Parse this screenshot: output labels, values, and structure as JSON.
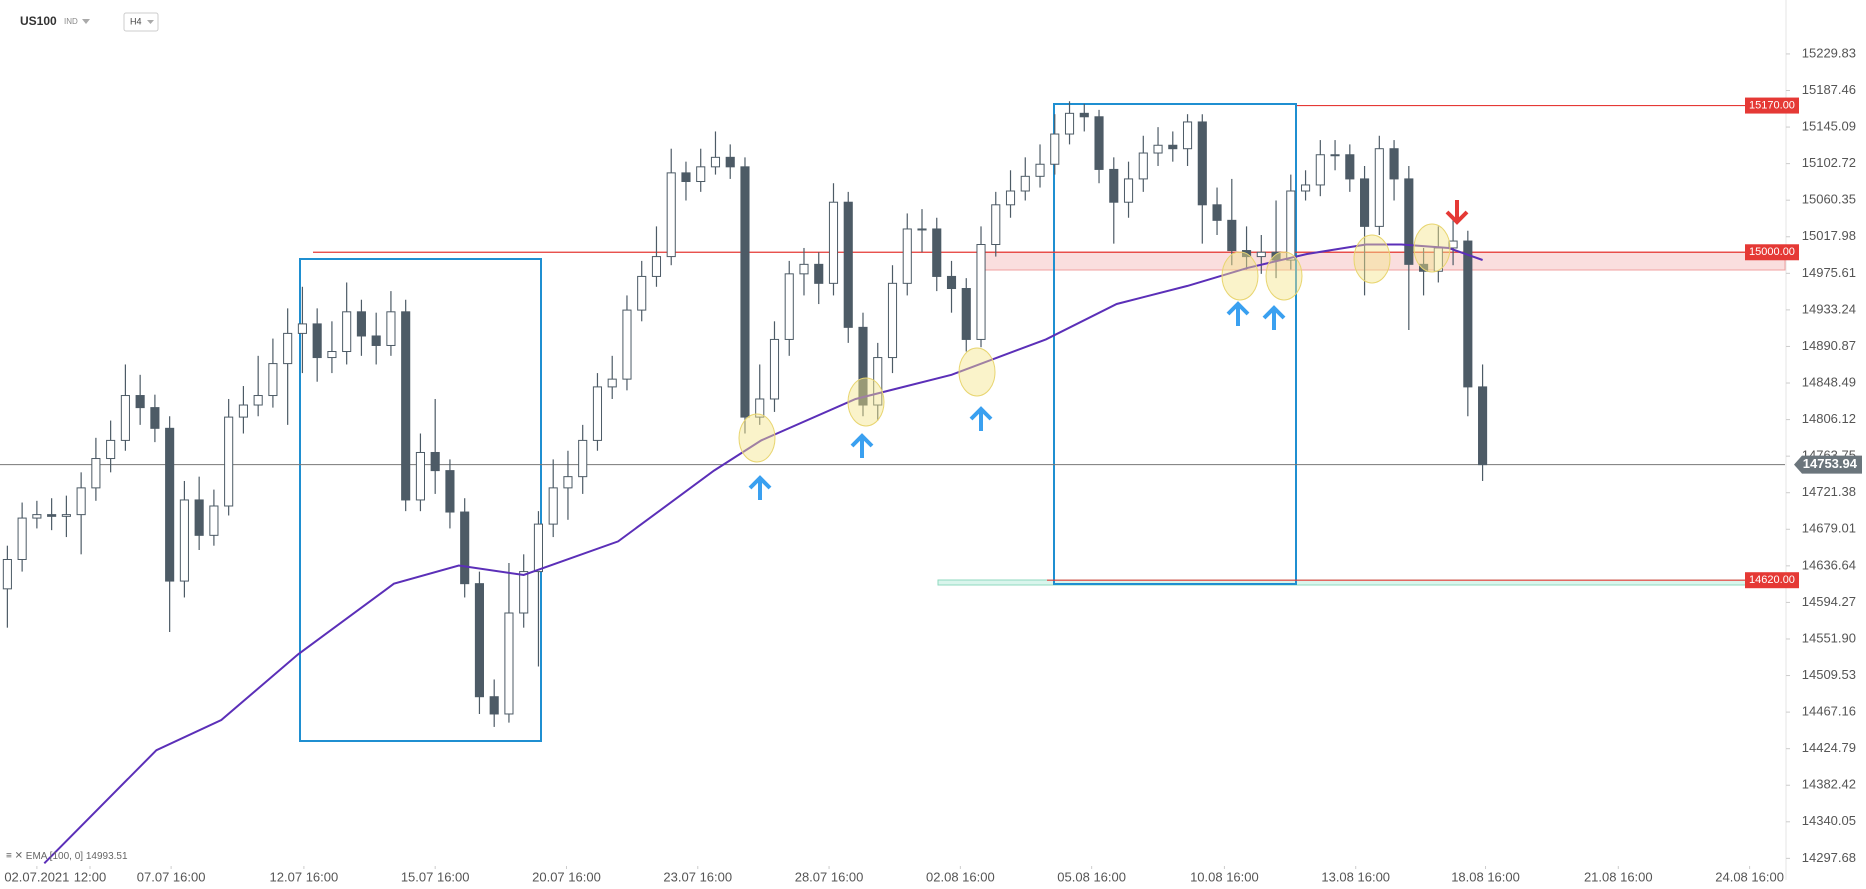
{
  "chart_data": {
    "type": "candlestick",
    "symbol": "US100",
    "market": "IND",
    "timeframe": "H4",
    "up_color": "#ffffff",
    "down_color": "#4d5b66",
    "open": [
      14610,
      14644,
      14692,
      14696,
      14694,
      14696,
      14727,
      14761,
      14782,
      14834,
      14820,
      14796,
      14619,
      14713,
      14672,
      14706,
      14809,
      14823,
      14834,
      14871,
      14906,
      14917,
      14878,
      14885,
      14931,
      14903,
      14892,
      14931,
      14713,
      14768,
      14747,
      14699,
      14616,
      14485,
      14465,
      14582,
      14630,
      14685,
      14727,
      14740,
      14782,
      14844,
      14853,
      14933,
      14972,
      14995,
      15092,
      15082,
      15099,
      15110,
      15099,
      14809,
      14830,
      14899,
      14975,
      14986,
      14964,
      15058,
      14913,
      14823,
      14878,
      14964,
      15027,
      15027,
      14972,
      14958,
      14899,
      15009,
      15055,
      15071,
      15088,
      15102,
      15137,
      15161,
      15157,
      15096,
      15058,
      15085,
      15115,
      15124,
      15120,
      15151,
      15055,
      15037,
      15002,
      14995,
      15000,
      14991,
      15071,
      15078,
      15113,
      15113,
      15085,
      15030,
      15120,
      15085,
      14986,
      14978,
      15005,
      15013,
      14844
    ],
    "high": [
      14660,
      14710,
      14712,
      14715,
      14718,
      14745,
      14785,
      14805,
      14870,
      14858,
      14835,
      14810,
      14735,
      14740,
      14725,
      14830,
      14845,
      14880,
      14900,
      14935,
      14960,
      14935,
      14920,
      14965,
      14945,
      14930,
      14955,
      14945,
      14790,
      14830,
      14760,
      14715,
      14630,
      14505,
      14640,
      14650,
      14700,
      14760,
      14770,
      14800,
      14860,
      14880,
      14950,
      14990,
      15030,
      15120,
      15105,
      15120,
      15140,
      15125,
      15110,
      14870,
      14920,
      14990,
      15005,
      15000,
      15080,
      15070,
      14930,
      14895,
      14985,
      15045,
      15050,
      15040,
      14990,
      14970,
      15030,
      15070,
      15095,
      15110,
      15125,
      15160,
      15175,
      15172,
      15165,
      15110,
      15105,
      15135,
      15145,
      15140,
      15160,
      15160,
      15075,
      15085,
      15030,
      15020,
      15060,
      15090,
      15095,
      15130,
      15130,
      15125,
      15100,
      15135,
      15130,
      15100,
      15005,
      15030,
      15040,
      15025,
      14870
    ],
    "low": [
      14565,
      14630,
      14680,
      14678,
      14670,
      14650,
      14712,
      14745,
      14770,
      14800,
      14780,
      14560,
      14600,
      14655,
      14660,
      14695,
      14790,
      14810,
      14820,
      14800,
      14860,
      14850,
      14860,
      14870,
      14880,
      14870,
      14880,
      14700,
      14700,
      14720,
      14680,
      14600,
      14465,
      14450,
      14455,
      14565,
      14520,
      14670,
      14690,
      14720,
      14770,
      14830,
      14840,
      14920,
      14960,
      14985,
      15060,
      15070,
      15090,
      15085,
      14790,
      14800,
      14815,
      14880,
      14950,
      14940,
      14950,
      14895,
      14810,
      14805,
      14860,
      14950,
      15000,
      14955,
      14930,
      14885,
      14890,
      14995,
      15040,
      15060,
      15075,
      15090,
      15125,
      15140,
      15080,
      15010,
      15040,
      15070,
      15100,
      15105,
      15100,
      15010,
      15020,
      14985,
      14980,
      14975,
      14970,
      14980,
      15060,
      15065,
      15095,
      15070,
      14950,
      15020,
      15060,
      14910,
      14950,
      14965,
      14985,
      14810,
      14735
    ],
    "close": [
      14644,
      14692,
      14696,
      14694,
      14696,
      14727,
      14761,
      14782,
      14834,
      14820,
      14796,
      14619,
      14713,
      14672,
      14706,
      14809,
      14823,
      14834,
      14871,
      14906,
      14917,
      14878,
      14885,
      14931,
      14903,
      14892,
      14931,
      14713,
      14768,
      14747,
      14699,
      14616,
      14485,
      14465,
      14582,
      14630,
      14685,
      14727,
      14740,
      14782,
      14844,
      14853,
      14933,
      14972,
      14995,
      15092,
      15082,
      15099,
      15110,
      15099,
      14809,
      14830,
      14899,
      14975,
      14986,
      14964,
      15058,
      14913,
      14823,
      14878,
      14964,
      15027,
      15027,
      14972,
      14958,
      14899,
      15009,
      15055,
      15071,
      15088,
      15102,
      15137,
      15161,
      15157,
      15096,
      15058,
      15085,
      15115,
      15124,
      15120,
      15151,
      15055,
      15037,
      15002,
      14995,
      15000,
      14991,
      15071,
      15078,
      15113,
      15113,
      15085,
      15030,
      15120,
      15085,
      14986,
      14978,
      15005,
      15013,
      14844,
      14753.94
    ],
    "ema": {
      "label": "EMA [100, 0]",
      "last": 14993.51,
      "color": "#5b2fb8",
      "x": [
        2.5,
        10.1,
        14.5,
        19.7,
        26.2,
        30.6,
        35.0,
        41.4,
        47.9,
        51.1,
        57.5,
        64.0,
        70.4,
        75.2,
        80.0,
        84.1,
        88.1,
        92.1,
        94.5,
        97.7,
        100
      ],
      "values": [
        14292,
        14423,
        14458,
        14534,
        14616,
        14637,
        14626,
        14665,
        14747,
        14782,
        14830,
        14858,
        14899,
        14940,
        14961,
        14982,
        14998,
        15009,
        15009,
        15005,
        14991
      ]
    },
    "levels": [
      {
        "value": 15170,
        "label": "15170.00"
      },
      {
        "value": 15000,
        "label": "15000.00"
      },
      {
        "value": 14620,
        "label": "14620.00"
      }
    ],
    "level_color": "#e53935",
    "last_price": 14753.94,
    "xlim": [
      -0.5,
      120.5
    ],
    "xticks": [
      {
        "value": 2.0,
        "label": "02.07.2021"
      },
      {
        "value": 5.6,
        "label": "12:00"
      },
      {
        "value": 11.1,
        "label": "07.07  16:00"
      },
      {
        "value": 20.1,
        "label": "12.07  16:00"
      },
      {
        "value": 29.0,
        "label": "15.07  16:00"
      },
      {
        "value": 37.9,
        "label": "20.07  16:00"
      },
      {
        "value": 46.8,
        "label": "23.07  16:00"
      },
      {
        "value": 55.7,
        "label": "28.07  16:00"
      },
      {
        "value": 64.6,
        "label": "02.08  16:00"
      },
      {
        "value": 73.5,
        "label": "05.08  16:00"
      },
      {
        "value": 82.5,
        "label": "10.08  16:00"
      },
      {
        "value": 91.4,
        "label": "13.08  16:00"
      },
      {
        "value": 100.2,
        "label": "18.08  16:00"
      },
      {
        "value": 109.2,
        "label": "21.08  16:00"
      },
      {
        "value": 118.1,
        "label": "24.08  16:00"
      }
    ],
    "ylim": [
      14290,
      15290
    ],
    "yticks": [
      15229.83,
      15187.46,
      15145.09,
      15102.72,
      15060.35,
      15017.98,
      14975.61,
      14933.24,
      14890.87,
      14848.49,
      14806.12,
      14763.75,
      14721.38,
      14679.01,
      14636.64,
      14594.27,
      {
        "value": 14551.9,
        "label": "14551.90"
      },
      14509.53,
      14467.16,
      14424.79,
      14382.42,
      14340.05,
      14297.68
    ]
  }
}
